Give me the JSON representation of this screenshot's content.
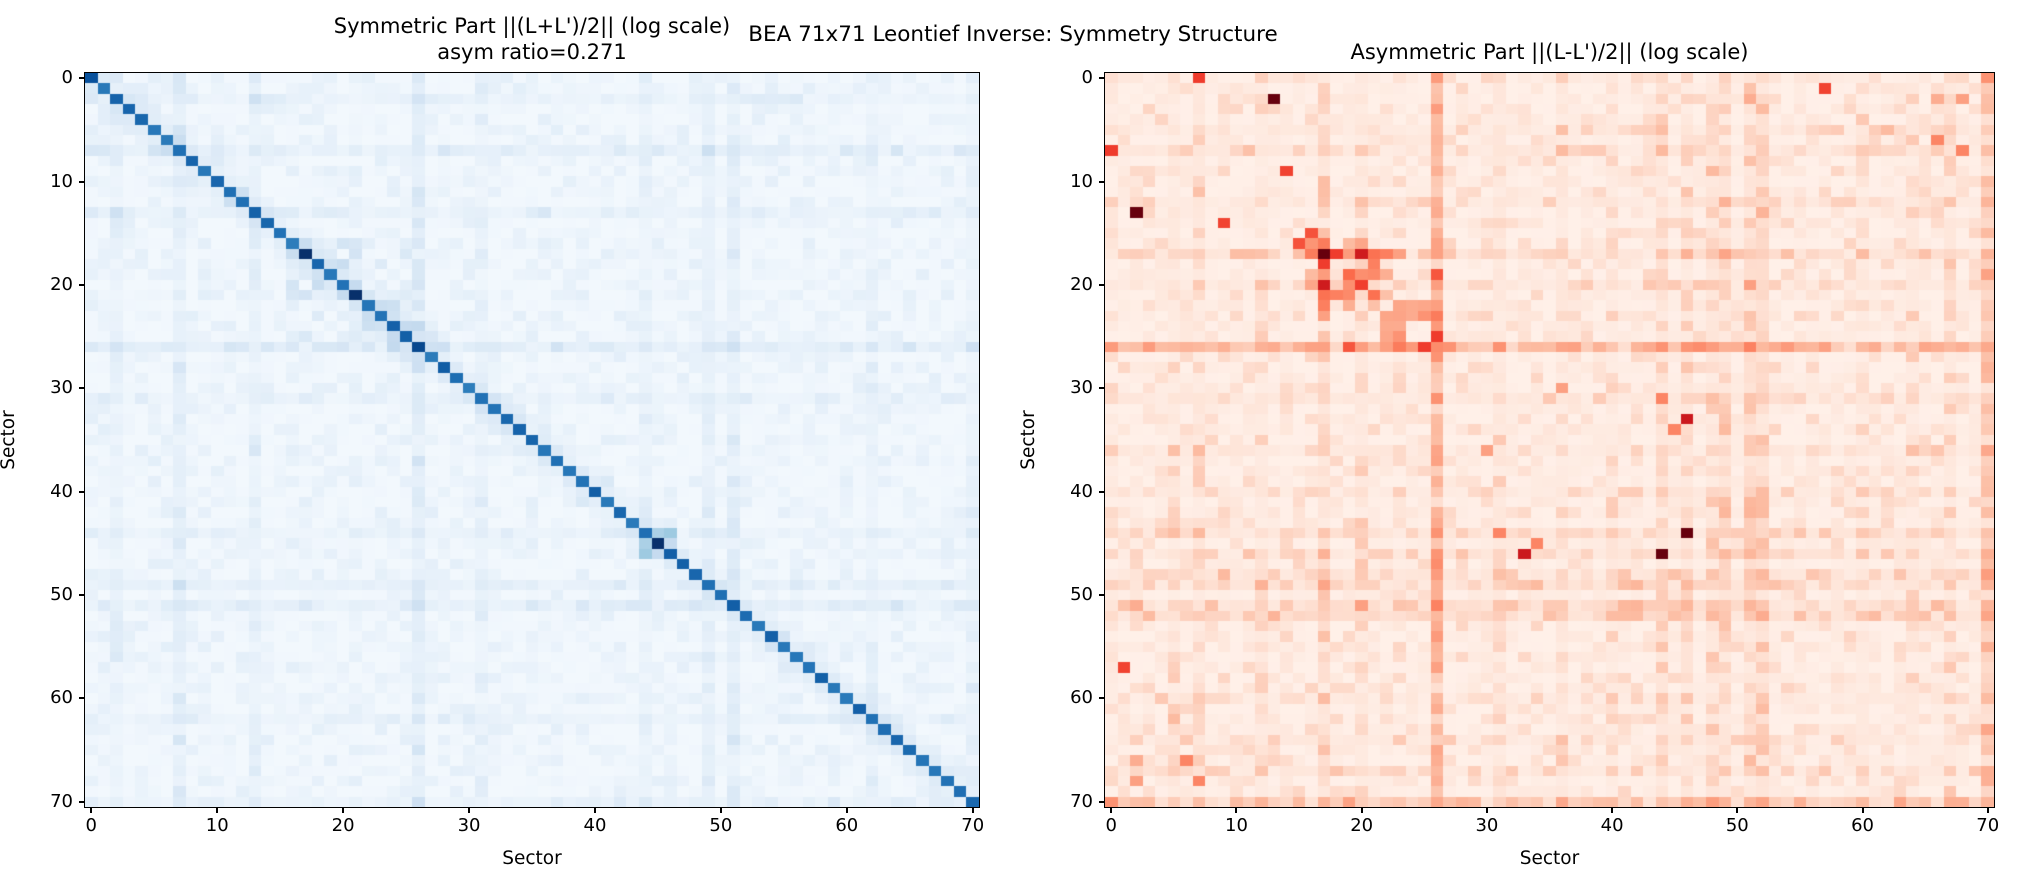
{
  "figure": {
    "suptitle": "BEA 71x71 Leontief Inverse: Symmetry Structure",
    "background": "#ffffff"
  },
  "chart_data": [
    {
      "type": "heatmap",
      "title": "Symmetric Part ||(L+L')/2|| (log scale)\nasym ratio=0.271",
      "xlabel": "Sector",
      "ylabel": "Sector",
      "n": 71,
      "xticks": [
        0,
        10,
        20,
        30,
        40,
        50,
        60,
        70
      ],
      "yticks": [
        0,
        10,
        20,
        30,
        40,
        50,
        60,
        70
      ],
      "axis_range": [
        -0.5,
        70.5
      ],
      "colormap_name": "Blues",
      "colormap": [
        [
          0.0,
          "#f7fbff"
        ],
        [
          0.15,
          "#e1edf8"
        ],
        [
          0.3,
          "#c6dbef"
        ],
        [
          0.45,
          "#9ecae1"
        ],
        [
          0.6,
          "#6baed6"
        ],
        [
          0.72,
          "#4292c6"
        ],
        [
          0.85,
          "#2171b5"
        ],
        [
          0.93,
          "#08519c"
        ],
        [
          1.0,
          "#08306b"
        ]
      ],
      "stats": {
        "asym_ratio": 0.271
      },
      "pattern": {
        "seed": 20177,
        "symmetric": true,
        "base": 0.035,
        "noise": 0.1,
        "noise_pow": 3,
        "near_diagonal": 0.14,
        "diagonal": {
          "value": 0.85,
          "jitter": 0.1,
          "dark": [
            [
              0,
              0.93
            ],
            [
              17,
              1.0
            ],
            [
              21,
              1.0
            ],
            [
              26,
              0.95
            ],
            [
              45,
              1.0
            ]
          ]
        },
        "stripes": [
          [
            2,
            0.05
          ],
          [
            7,
            0.08
          ],
          [
            13,
            0.06
          ],
          [
            26,
            0.11
          ],
          [
            31,
            0.05
          ],
          [
            44,
            0.05
          ],
          [
            49,
            0.09
          ],
          [
            51,
            0.09
          ],
          [
            62,
            0.05
          ],
          [
            70,
            0.06
          ]
        ],
        "blocks": [
          [
            16,
            26,
            16,
            26,
            0.1,
            0.5
          ]
        ],
        "hotspots": [
          [
            44,
            46,
            0.45
          ],
          [
            45,
            44,
            0.4
          ],
          [
            2,
            13,
            0.25
          ],
          [
            0,
            7,
            0.2
          ],
          [
            36,
            13,
            0.2
          ],
          [
            46,
            45,
            0.3
          ]
        ]
      }
    },
    {
      "type": "heatmap",
      "title": "Asymmetric Part ||(L-L')/2|| (log scale)",
      "xlabel": "Sector",
      "ylabel": "Sector",
      "n": 71,
      "xticks": [
        0,
        10,
        20,
        30,
        40,
        50,
        60,
        70
      ],
      "yticks": [
        0,
        10,
        20,
        30,
        40,
        50,
        60,
        70
      ],
      "axis_range": [
        -0.5,
        70.5
      ],
      "colormap_name": "Reds",
      "colormap": [
        [
          0.0,
          "#fff5f0"
        ],
        [
          0.15,
          "#fee5d9"
        ],
        [
          0.3,
          "#fcbba1"
        ],
        [
          0.45,
          "#fc9272"
        ],
        [
          0.6,
          "#fb6a4a"
        ],
        [
          0.72,
          "#ef3b2c"
        ],
        [
          0.85,
          "#cb181d"
        ],
        [
          0.93,
          "#a50f15"
        ],
        [
          1.0,
          "#67000d"
        ]
      ],
      "pattern": {
        "seed": 8844,
        "symmetric": true,
        "base": 0.05,
        "noise": 0.16,
        "noise_pow": 2.5,
        "near_diagonal": 0,
        "diagonal": null,
        "stripes": [
          [
            5,
            0.05
          ],
          [
            7,
            0.07
          ],
          [
            12,
            0.05
          ],
          [
            17,
            0.1
          ],
          [
            20,
            0.07
          ],
          [
            26,
            0.3
          ],
          [
            31,
            0.07
          ],
          [
            36,
            0.06
          ],
          [
            40,
            0.06
          ],
          [
            44,
            0.1
          ],
          [
            46,
            0.07
          ],
          [
            48,
            0.1
          ],
          [
            49,
            0.12
          ],
          [
            51,
            0.13
          ],
          [
            52,
            0.15
          ],
          [
            60,
            0.05
          ],
          [
            64,
            0.05
          ],
          [
            67,
            0.07
          ],
          [
            70,
            0.2
          ]
        ],
        "blocks": [
          [
            16,
            26,
            16,
            26,
            0.3,
            0.35
          ],
          [
            17,
            20,
            17,
            22,
            0.45,
            0.5
          ]
        ],
        "hotspots": [
          [
            2,
            13,
            1.0
          ],
          [
            44,
            46,
            1.0
          ],
          [
            0,
            7,
            0.72
          ],
          [
            9,
            14,
            0.7
          ],
          [
            15,
            16,
            0.66
          ],
          [
            33,
            46,
            0.85
          ],
          [
            57,
            1,
            0.7
          ],
          [
            7,
            68,
            0.5
          ],
          [
            2,
            68,
            0.4
          ],
          [
            2,
            51,
            0.35
          ],
          [
            66,
            6,
            0.5
          ],
          [
            66,
            2,
            0.35
          ],
          [
            31,
            44,
            0.5
          ],
          [
            36,
            30,
            0.4
          ],
          [
            45,
            34,
            0.5
          ],
          [
            51,
            20,
            0.4
          ],
          [
            62,
            5,
            0.3
          ],
          [
            0,
            70,
            0.45
          ]
        ]
      }
    }
  ]
}
